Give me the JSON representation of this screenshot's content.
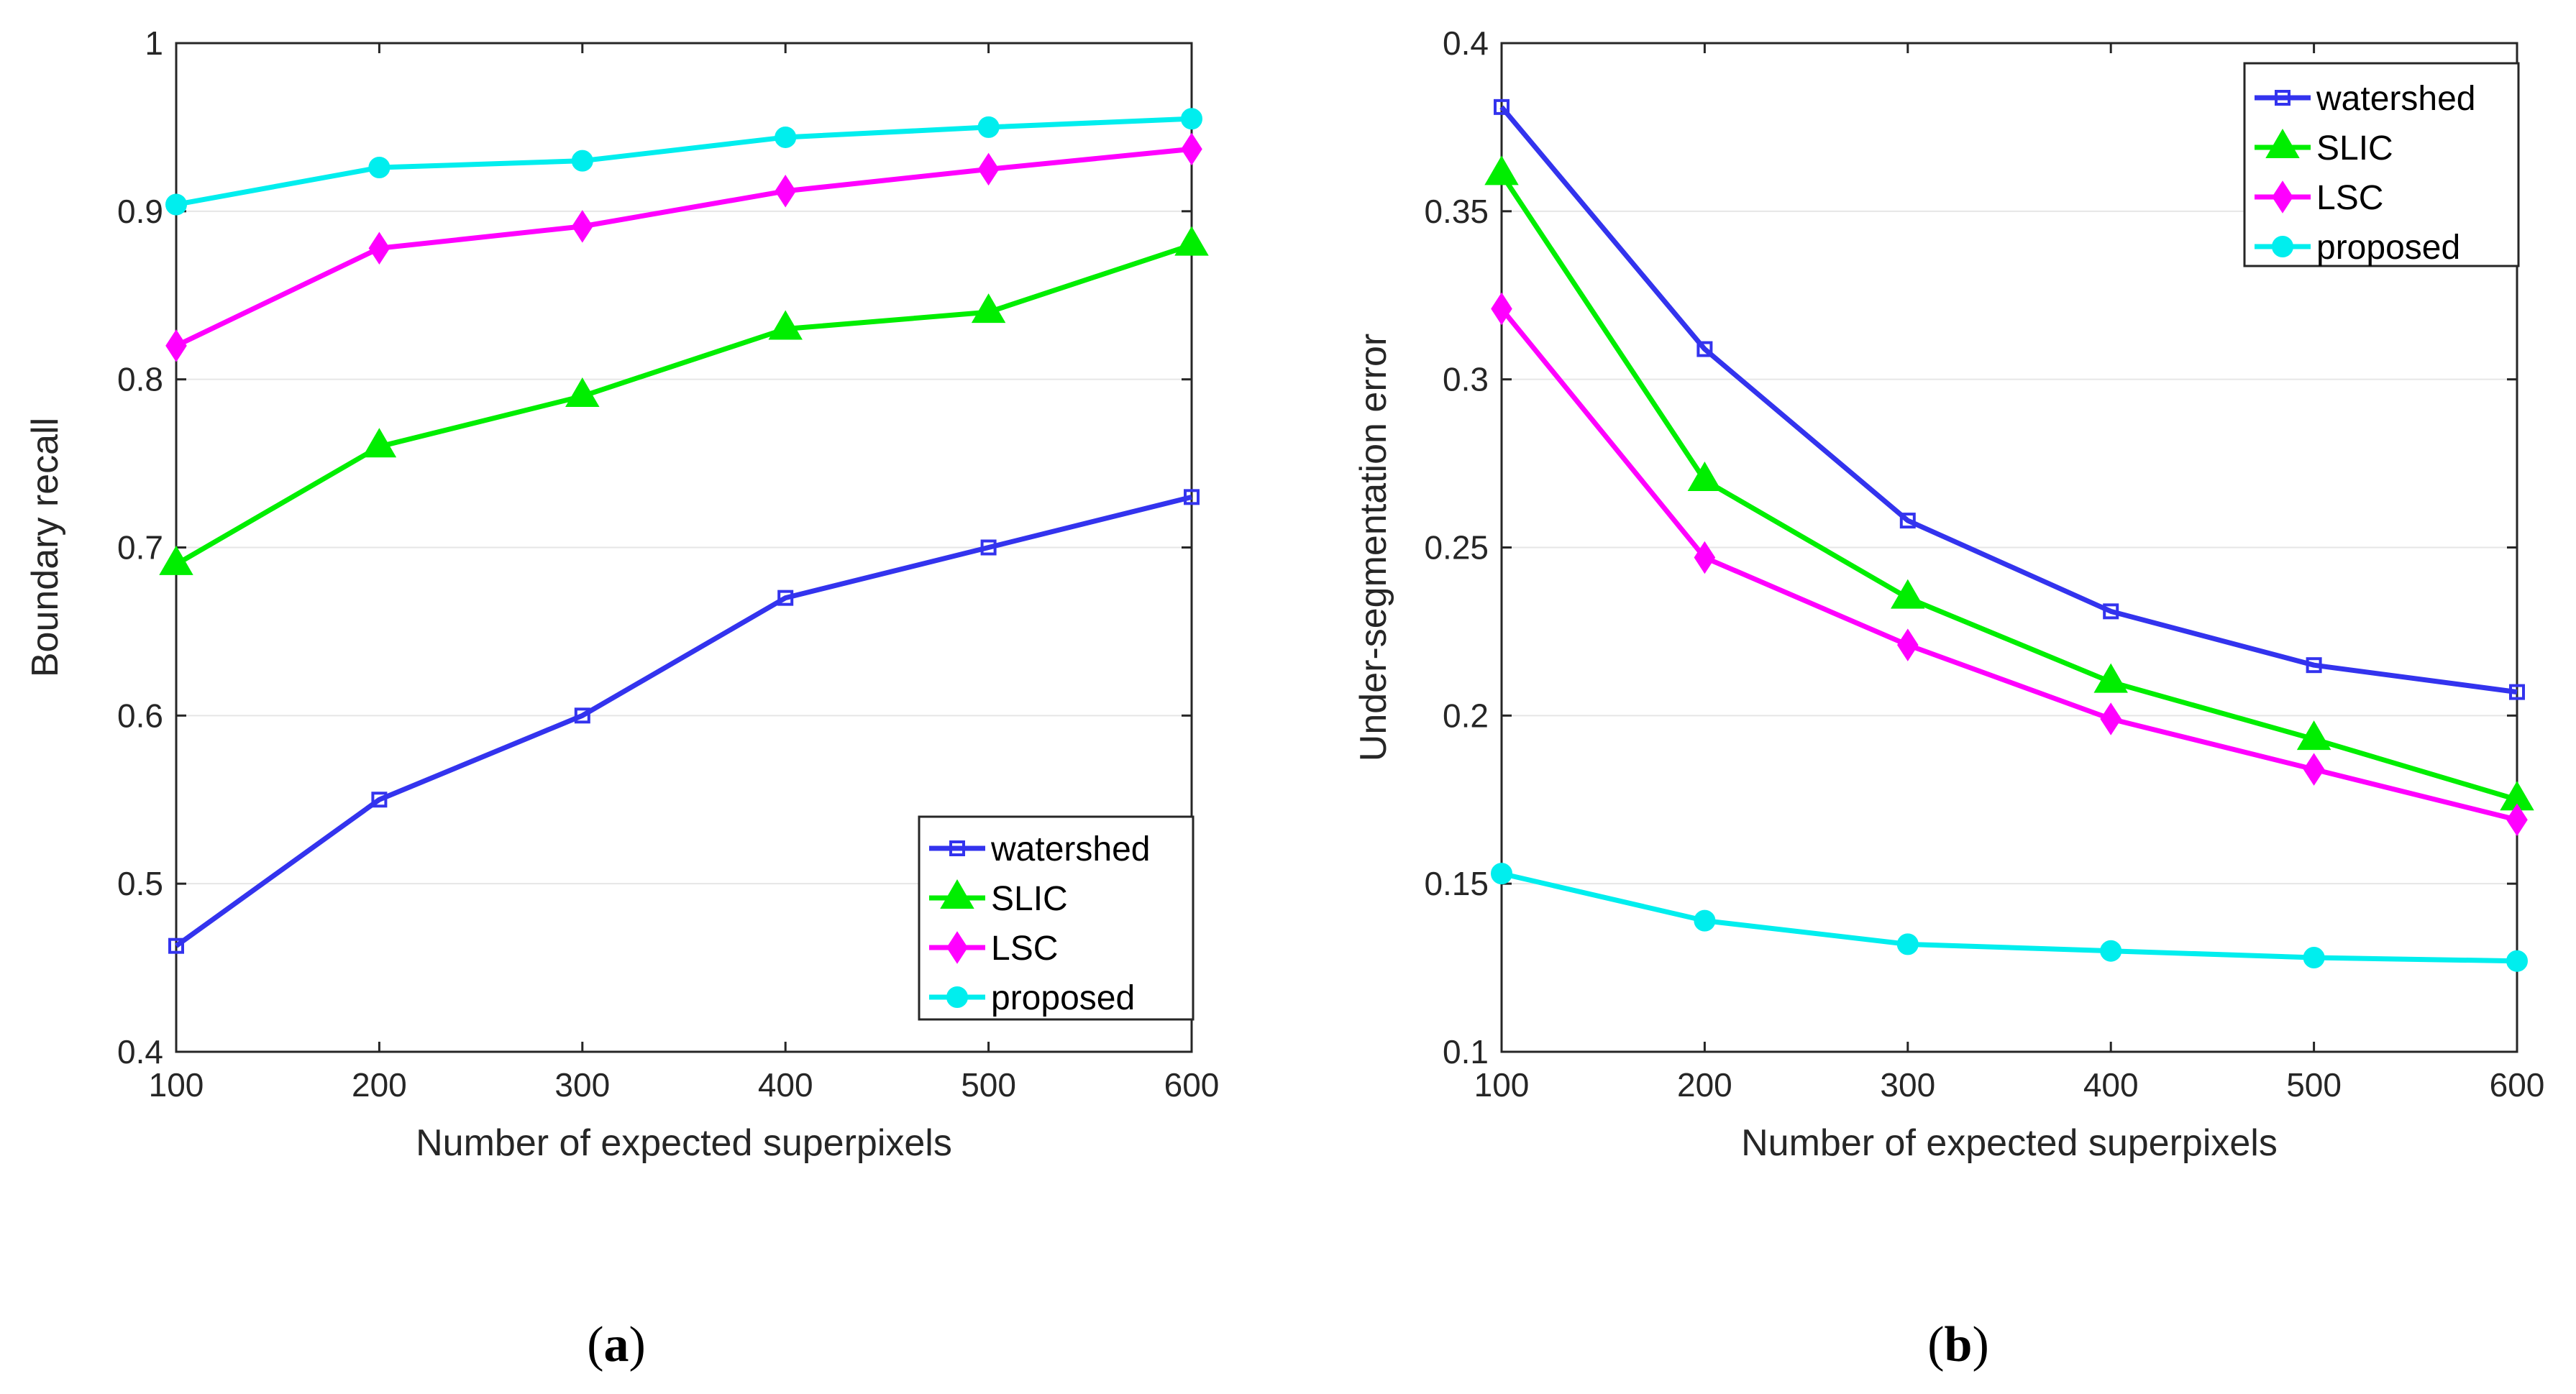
{
  "chart_data": [
    {
      "type": "line",
      "panel_label": "a",
      "title": "",
      "xlabel": "Number of expected superpixels",
      "ylabel": "Boundary recall",
      "x": [
        100,
        200,
        300,
        400,
        500,
        600
      ],
      "xlim": [
        100,
        600
      ],
      "ylim": [
        0.4,
        1.0
      ],
      "xticks": [
        100,
        200,
        300,
        400,
        500,
        600
      ],
      "yticks": [
        0.4,
        0.5,
        0.6,
        0.7,
        0.8,
        0.9,
        1.0
      ],
      "ytick_labels": [
        "0.4",
        "0.5",
        "0.6",
        "0.7",
        "0.8",
        "0.9",
        "1"
      ],
      "grid": "horizontal",
      "legend_position": "bottom-right",
      "series": [
        {
          "name": "watershed",
          "color": "#3333EE",
          "marker": "square",
          "values": [
            0.463,
            0.55,
            0.6,
            0.67,
            0.7,
            0.73
          ]
        },
        {
          "name": "SLIC",
          "color": "#00EE00",
          "marker": "triangle",
          "values": [
            0.69,
            0.76,
            0.79,
            0.83,
            0.84,
            0.88
          ]
        },
        {
          "name": "LSC",
          "color": "#FF00FF",
          "marker": "diamond",
          "values": [
            0.82,
            0.878,
            0.891,
            0.912,
            0.925,
            0.937
          ]
        },
        {
          "name": "proposed",
          "color": "#00EEEE",
          "marker": "circle",
          "values": [
            0.904,
            0.926,
            0.93,
            0.944,
            0.95,
            0.955
          ]
        }
      ]
    },
    {
      "type": "line",
      "panel_label": "b",
      "title": "",
      "xlabel": "Number of expected superpixels",
      "ylabel": "Under-segmentation error",
      "x": [
        100,
        200,
        300,
        400,
        500,
        600
      ],
      "xlim": [
        100,
        600
      ],
      "ylim": [
        0.1,
        0.4
      ],
      "xticks": [
        100,
        200,
        300,
        400,
        500,
        600
      ],
      "yticks": [
        0.1,
        0.15,
        0.2,
        0.25,
        0.3,
        0.35,
        0.4
      ],
      "ytick_labels": [
        "0.1",
        "0.15",
        "0.2",
        "0.25",
        "0.3",
        "0.35",
        "0.4"
      ],
      "grid": "horizontal",
      "legend_position": "top-right",
      "series": [
        {
          "name": "watershed",
          "color": "#3333EE",
          "marker": "square",
          "values": [
            0.381,
            0.309,
            0.258,
            0.231,
            0.215,
            0.207
          ]
        },
        {
          "name": "SLIC",
          "color": "#00EE00",
          "marker": "triangle",
          "values": [
            0.361,
            0.27,
            0.235,
            0.21,
            0.193,
            0.175
          ]
        },
        {
          "name": "LSC",
          "color": "#FF00FF",
          "marker": "diamond",
          "values": [
            0.321,
            0.247,
            0.221,
            0.199,
            0.184,
            0.169
          ]
        },
        {
          "name": "proposed",
          "color": "#00EEEE",
          "marker": "circle",
          "values": [
            0.153,
            0.139,
            0.132,
            0.13,
            0.128,
            0.127
          ]
        }
      ]
    }
  ]
}
